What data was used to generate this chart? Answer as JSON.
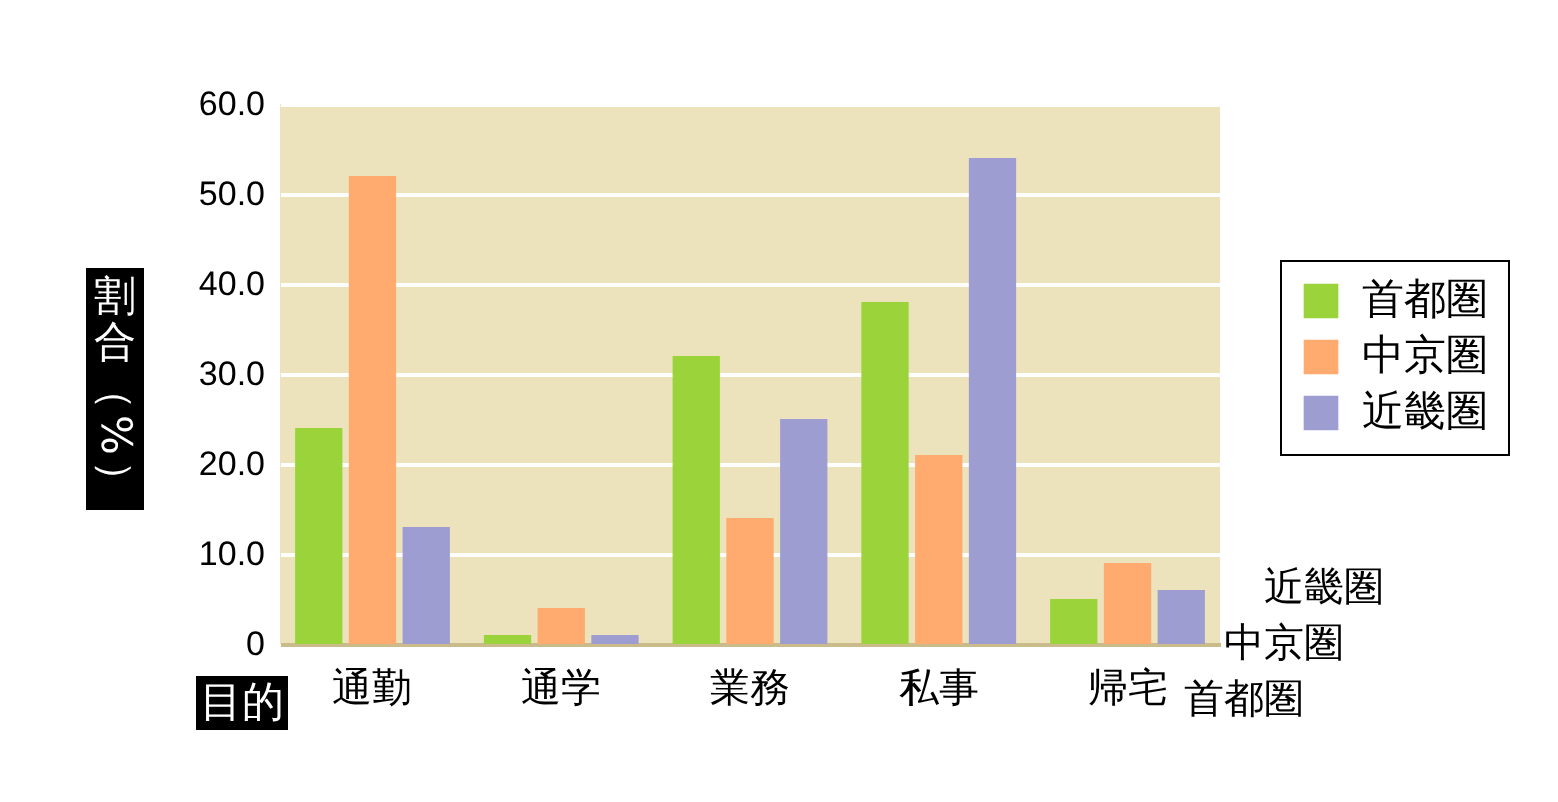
{
  "chart_data": {
    "type": "bar",
    "ylabel": "割合（%）",
    "xlabel": "目的",
    "categories": [
      "通勤",
      "通学",
      "業務",
      "私事",
      "帰宅"
    ],
    "series": [
      {
        "name": "首都圏",
        "color": "#9ad43a",
        "values": [
          24,
          1,
          32,
          38,
          5
        ]
      },
      {
        "name": "中京圏",
        "color": "#ffaa6e",
        "values": [
          52,
          4,
          14,
          21,
          9
        ]
      },
      {
        "name": "近畿圏",
        "color": "#9d9dd2",
        "values": [
          13,
          1,
          25,
          54,
          6
        ]
      }
    ],
    "ylim": [
      0,
      60
    ],
    "yticks": [
      0,
      {
        "value": 10,
        "label": "10.0"
      },
      {
        "value": 20,
        "label": "20.0"
      },
      {
        "value": 30,
        "label": "30.0"
      },
      {
        "value": 40,
        "label": "40.0"
      },
      {
        "value": 50,
        "label": "50.0"
      },
      {
        "value": 60,
        "label": "60.0"
      }
    ],
    "grid": "y",
    "legend": "right"
  }
}
